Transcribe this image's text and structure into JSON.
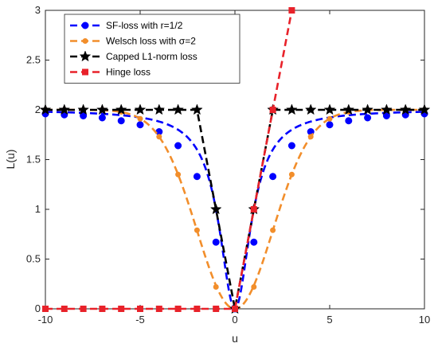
{
  "chart_data": {
    "type": "line",
    "title": "",
    "xlabel": "u",
    "ylabel": "L(u)",
    "xlim": [
      -10,
      10
    ],
    "ylim": [
      0,
      3
    ],
    "xticks": [
      -10,
      -5,
      0,
      5,
      10
    ],
    "yticks": [
      0,
      0.5,
      1,
      1.5,
      2,
      2.5,
      3
    ],
    "xtick_labels": [
      "-10",
      "-5",
      "0",
      "5",
      "10"
    ],
    "ytick_labels": [
      "0",
      "0.5",
      "1",
      "1.5",
      "2",
      "2.5",
      "3"
    ],
    "grid": false,
    "legend_position": "top-left",
    "series": [
      {
        "name": "SF-loss with r=1/2",
        "color": "#0000ff",
        "marker": "circle",
        "curve": "sf",
        "x": [
          -10,
          -9,
          -8,
          -7,
          -6,
          -5,
          -4,
          -3,
          -2,
          -1,
          0,
          1,
          2,
          3,
          4,
          5,
          6,
          7,
          8,
          9,
          10
        ],
        "y": [
          1.96,
          1.95,
          1.94,
          1.92,
          1.89,
          1.85,
          1.78,
          1.64,
          1.33,
          0.67,
          0,
          0.67,
          1.33,
          1.64,
          1.78,
          1.85,
          1.89,
          1.92,
          1.94,
          1.95,
          1.96
        ]
      },
      {
        "name": "Welsch loss with σ=2",
        "color": "#f28e2b",
        "marker": "dot",
        "curve": "welsch",
        "x": [
          -10,
          -9,
          -8,
          -7,
          -6,
          -5,
          -4,
          -3,
          -2,
          -1,
          0,
          1,
          2,
          3,
          4,
          5,
          6,
          7,
          8,
          9,
          10
        ],
        "y": [
          2.0,
          2.0,
          2.0,
          2.0,
          1.98,
          1.91,
          1.73,
          1.35,
          0.79,
          0.22,
          0,
          0.22,
          0.79,
          1.35,
          1.73,
          1.91,
          1.98,
          2.0,
          2.0,
          2.0,
          2.0
        ]
      },
      {
        "name": "Capped L1-norm loss",
        "color": "#000000",
        "marker": "star",
        "curve": "capped",
        "x": [
          -10,
          -9,
          -8,
          -7,
          -6,
          -5,
          -4,
          -3,
          -2,
          -1,
          0,
          1,
          2,
          3,
          4,
          5,
          6,
          7,
          8,
          9,
          10
        ],
        "y": [
          2,
          2,
          2,
          2,
          2,
          2,
          2,
          2,
          2,
          1,
          0,
          1,
          2,
          2,
          2,
          2,
          2,
          2,
          2,
          2,
          2
        ]
      },
      {
        "name": "Hinge loss",
        "color": "#e8222a",
        "marker": "square",
        "curve": "hinge",
        "x": [
          -10,
          -9,
          -8,
          -7,
          -6,
          -5,
          -4,
          -3,
          -2,
          -1,
          0,
          1,
          2,
          3
        ],
        "y": [
          0,
          0,
          0,
          0,
          0,
          0,
          0,
          0,
          0,
          0,
          0,
          1,
          2,
          3
        ]
      }
    ]
  }
}
